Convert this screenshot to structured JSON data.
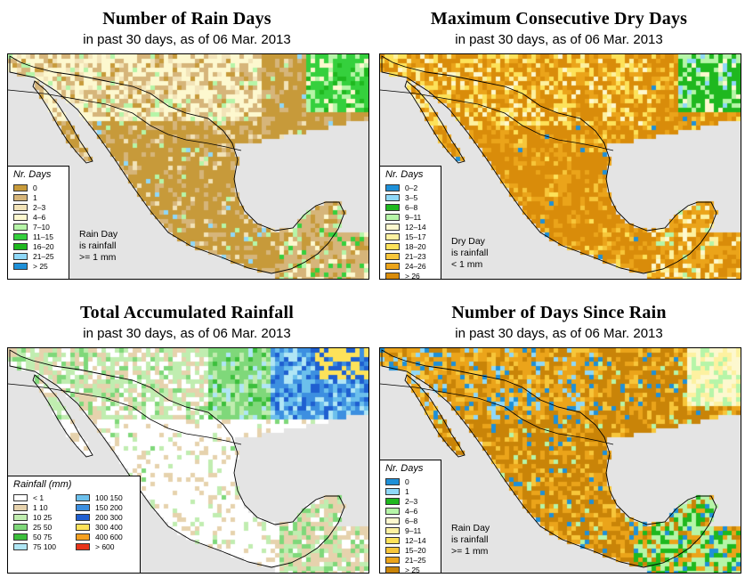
{
  "chart_data": [
    {
      "type": "heatmap",
      "title": "Number of Rain Days",
      "subtitle": "in past 30 days, as of  06 Mar. 2013",
      "legend_title": "Nr. Days",
      "note": [
        "Rain Day",
        "is rainfall",
        ">= 1 mm"
      ],
      "bins": [
        {
          "label": "0",
          "color": "#c79a3a"
        },
        {
          "label": "1",
          "color": "#d6b57a"
        },
        {
          "label": "2–3",
          "color": "#f2e3b8"
        },
        {
          "label": "4–6",
          "color": "#fdf8cf"
        },
        {
          "label": "7–10",
          "color": "#b6f5a8"
        },
        {
          "label": "11–15",
          "color": "#35d03d"
        },
        {
          "label": "16–20",
          "color": "#1fb81f"
        },
        {
          "label": "21–25",
          "color": "#8fd8f8"
        },
        {
          "label": "> 25",
          "color": "#1e90d8"
        }
      ]
    },
    {
      "type": "heatmap",
      "title": "Maximum Consecutive Dry Days",
      "subtitle": "in past 30 days, as of  06 Mar. 2013",
      "legend_title": "Nr. Days",
      "note": [
        "Dry Day",
        "is rainfall",
        "< 1 mm"
      ],
      "bins": [
        {
          "label": "0–2",
          "color": "#1e90d8"
        },
        {
          "label": "3–5",
          "color": "#8fd8f8"
        },
        {
          "label": "6–8",
          "color": "#1fb81f"
        },
        {
          "label": "9–11",
          "color": "#b6f5a8"
        },
        {
          "label": "12–14",
          "color": "#fdf8cf"
        },
        {
          "label": "15–17",
          "color": "#fdf1a0"
        },
        {
          "label": "18–20",
          "color": "#fde25a"
        },
        {
          "label": "21–23",
          "color": "#f7c63a"
        },
        {
          "label": "24–26",
          "color": "#eba41a"
        },
        {
          "label": "> 26",
          "color": "#d98c0a"
        }
      ]
    },
    {
      "type": "heatmap",
      "title": "Total Accumulated Rainfall",
      "subtitle": "in past 30 days, as of  06 Mar. 2013",
      "legend_title": "Rainfall (mm)",
      "note": [],
      "bins": [
        {
          "label": "< 1",
          "color": "#ffffff"
        },
        {
          "label": "1   10",
          "color": "#e6d2ad"
        },
        {
          "label": "10   25",
          "color": "#c0edb0"
        },
        {
          "label": "25   50",
          "color": "#7fd87a"
        },
        {
          "label": "50   75",
          "color": "#3cbf3c"
        },
        {
          "label": "75   100",
          "color": "#b0e6f5"
        },
        {
          "label": "100   150",
          "color": "#6cc0ec"
        },
        {
          "label": "150   200",
          "color": "#3d8fe0"
        },
        {
          "label": "200   300",
          "color": "#1f5fd0"
        },
        {
          "label": "300   400",
          "color": "#fde25a"
        },
        {
          "label": "400   600",
          "color": "#f5a020"
        },
        {
          "label": "> 600",
          "color": "#e8341a"
        }
      ]
    },
    {
      "type": "heatmap",
      "title": "Number of Days Since Rain",
      "subtitle": "in past 30 days, as of  06 Mar. 2013",
      "legend_title": "Nr. Days",
      "note": [
        "Rain Day",
        "is rainfall",
        ">= 1 mm"
      ],
      "bins": [
        {
          "label": "0",
          "color": "#1e90d8"
        },
        {
          "label": "1",
          "color": "#8fd8f8"
        },
        {
          "label": "2–3",
          "color": "#1fb81f"
        },
        {
          "label": "4–6",
          "color": "#b6f5a8"
        },
        {
          "label": "6–8",
          "color": "#fdf8cf"
        },
        {
          "label": "9–11",
          "color": "#fdf1a0"
        },
        {
          "label": "12–14",
          "color": "#fde25a"
        },
        {
          "label": "15–20",
          "color": "#f7c63a"
        },
        {
          "label": "21–25",
          "color": "#eba41a"
        },
        {
          "label": "> 25",
          "color": "#c98408"
        }
      ]
    }
  ]
}
